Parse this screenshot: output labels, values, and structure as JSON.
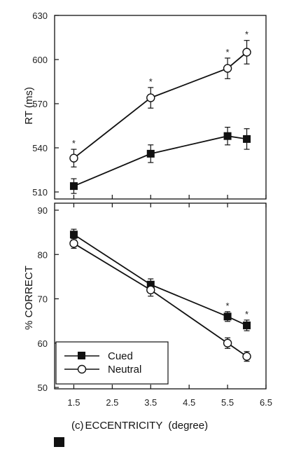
{
  "chart_data": [
    {
      "type": "line",
      "ylabel": "RT (ms)",
      "ylim": [
        510,
        630
      ],
      "yticks": [
        510,
        540,
        570,
        600,
        630
      ],
      "xlim": [
        1,
        6.5
      ],
      "series": [
        {
          "name": "Cued",
          "marker": "filled-square",
          "x": [
            1.5,
            3.5,
            5.5,
            6.0
          ],
          "y": [
            514,
            536,
            548,
            546
          ],
          "err": [
            5,
            6,
            6,
            7
          ]
        },
        {
          "name": "Neutral",
          "marker": "open-circle",
          "x": [
            1.5,
            3.5,
            5.5,
            6.0
          ],
          "y": [
            533,
            574,
            594,
            605
          ],
          "err": [
            6,
            7,
            7,
            8
          ]
        }
      ],
      "annotations": [
        {
          "x": 1.5,
          "text": "*"
        },
        {
          "x": 3.5,
          "text": "*"
        },
        {
          "x": 5.5,
          "text": "*"
        },
        {
          "x": 6.0,
          "text": "*"
        }
      ]
    },
    {
      "type": "line",
      "ylabel": "% CORRECT",
      "xlabel": "ECCENTRICITY  (degree)",
      "panel_label": "(c)",
      "ylim": [
        50,
        90
      ],
      "yticks": [
        50,
        60,
        70,
        80,
        90
      ],
      "xlim": [
        1,
        6.5
      ],
      "xticks": [
        "1.5",
        "2.5",
        "3.5",
        "4.5",
        "5.5",
        "6.5"
      ],
      "series": [
        {
          "name": "Cued",
          "marker": "filled-square",
          "x": [
            1.5,
            3.5,
            5.5,
            6.0
          ],
          "y": [
            84.5,
            73.2,
            66.0,
            64.0
          ],
          "err": [
            1.2,
            1.3,
            1.1,
            1.2
          ]
        },
        {
          "name": "Neutral",
          "marker": "open-circle",
          "x": [
            1.5,
            3.5,
            5.5,
            6.0
          ],
          "y": [
            82.5,
            72.0,
            60.0,
            57.0
          ],
          "err": [
            1.1,
            1.4,
            1.2,
            1.1
          ]
        }
      ],
      "annotations": [
        {
          "x": 5.5,
          "text": "*"
        },
        {
          "x": 6.0,
          "text": "*"
        }
      ],
      "legend": {
        "placement": "bottom-left",
        "entries": [
          {
            "label": "Cued",
            "marker": "filled-square"
          },
          {
            "label": "Neutral",
            "marker": "open-circle"
          }
        ]
      }
    }
  ]
}
